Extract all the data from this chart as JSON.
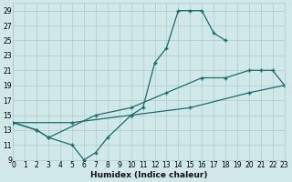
{
  "xlabel": "Humidex (Indice chaleur)",
  "bg_color": "#d0e8e8",
  "grid_color": "#aacccc",
  "line_color": "#1e6b6b",
  "xlim": [
    0,
    23
  ],
  "ylim": [
    9,
    30
  ],
  "xticks": [
    0,
    1,
    2,
    3,
    4,
    5,
    6,
    7,
    8,
    9,
    10,
    11,
    12,
    13,
    14,
    15,
    16,
    17,
    18,
    19,
    20,
    21,
    22,
    23
  ],
  "yticks": [
    9,
    11,
    13,
    15,
    17,
    19,
    21,
    23,
    25,
    27,
    29
  ],
  "line1_x": [
    0,
    2,
    3,
    5,
    6,
    7,
    8,
    10,
    11,
    12,
    13,
    14,
    15,
    16,
    17,
    18
  ],
  "line1_y": [
    14,
    13,
    12,
    11,
    9,
    10,
    12,
    15,
    16,
    22,
    24,
    29,
    29,
    29,
    26,
    25
  ],
  "line2_x": [
    0,
    2,
    3,
    7,
    10,
    13,
    16,
    18,
    20,
    21,
    22,
    23
  ],
  "line2_y": [
    14,
    13,
    12,
    15,
    16,
    18,
    20,
    20,
    21,
    21,
    21,
    19
  ],
  "line3_x": [
    0,
    5,
    10,
    15,
    20,
    23
  ],
  "line3_y": [
    14,
    14,
    15,
    16,
    18,
    19
  ]
}
